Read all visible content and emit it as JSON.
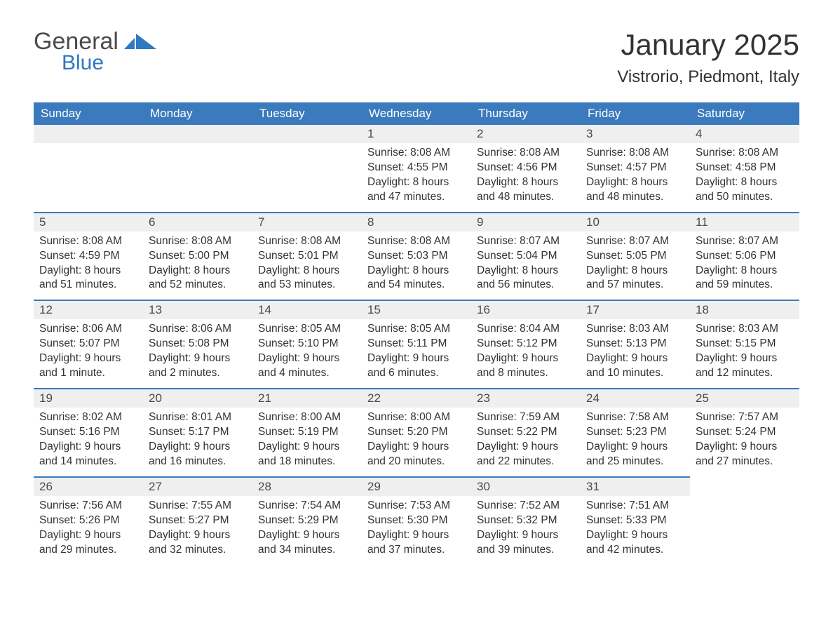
{
  "brand": {
    "part1": "General",
    "part2": "Blue",
    "part1_color": "#4b4b4b",
    "part2_color": "#2f78c2"
  },
  "title": "January 2025",
  "location": "Vistrorio, Piedmont, Italy",
  "colors": {
    "header_bg": "#3a7abd",
    "header_text": "#ffffff",
    "daynum_bg": "#efefef",
    "daynum_text": "#4a4a4a",
    "body_text": "#333333",
    "page_bg": "#ffffff",
    "separator": "#3a7abd"
  },
  "fonts": {
    "title_size": 42,
    "location_size": 24,
    "dayhead_size": 17,
    "body_size": 15.5
  },
  "day_names": [
    "Sunday",
    "Monday",
    "Tuesday",
    "Wednesday",
    "Thursday",
    "Friday",
    "Saturday"
  ],
  "weeks": [
    [
      null,
      null,
      null,
      {
        "n": "1",
        "sunrise": "Sunrise: 8:08 AM",
        "sunset": "Sunset: 4:55 PM",
        "d1": "Daylight: 8 hours",
        "d2": "and 47 minutes."
      },
      {
        "n": "2",
        "sunrise": "Sunrise: 8:08 AM",
        "sunset": "Sunset: 4:56 PM",
        "d1": "Daylight: 8 hours",
        "d2": "and 48 minutes."
      },
      {
        "n": "3",
        "sunrise": "Sunrise: 8:08 AM",
        "sunset": "Sunset: 4:57 PM",
        "d1": "Daylight: 8 hours",
        "d2": "and 48 minutes."
      },
      {
        "n": "4",
        "sunrise": "Sunrise: 8:08 AM",
        "sunset": "Sunset: 4:58 PM",
        "d1": "Daylight: 8 hours",
        "d2": "and 50 minutes."
      }
    ],
    [
      {
        "n": "5",
        "sunrise": "Sunrise: 8:08 AM",
        "sunset": "Sunset: 4:59 PM",
        "d1": "Daylight: 8 hours",
        "d2": "and 51 minutes."
      },
      {
        "n": "6",
        "sunrise": "Sunrise: 8:08 AM",
        "sunset": "Sunset: 5:00 PM",
        "d1": "Daylight: 8 hours",
        "d2": "and 52 minutes."
      },
      {
        "n": "7",
        "sunrise": "Sunrise: 8:08 AM",
        "sunset": "Sunset: 5:01 PM",
        "d1": "Daylight: 8 hours",
        "d2": "and 53 minutes."
      },
      {
        "n": "8",
        "sunrise": "Sunrise: 8:08 AM",
        "sunset": "Sunset: 5:03 PM",
        "d1": "Daylight: 8 hours",
        "d2": "and 54 minutes."
      },
      {
        "n": "9",
        "sunrise": "Sunrise: 8:07 AM",
        "sunset": "Sunset: 5:04 PM",
        "d1": "Daylight: 8 hours",
        "d2": "and 56 minutes."
      },
      {
        "n": "10",
        "sunrise": "Sunrise: 8:07 AM",
        "sunset": "Sunset: 5:05 PM",
        "d1": "Daylight: 8 hours",
        "d2": "and 57 minutes."
      },
      {
        "n": "11",
        "sunrise": "Sunrise: 8:07 AM",
        "sunset": "Sunset: 5:06 PM",
        "d1": "Daylight: 8 hours",
        "d2": "and 59 minutes."
      }
    ],
    [
      {
        "n": "12",
        "sunrise": "Sunrise: 8:06 AM",
        "sunset": "Sunset: 5:07 PM",
        "d1": "Daylight: 9 hours",
        "d2": "and 1 minute."
      },
      {
        "n": "13",
        "sunrise": "Sunrise: 8:06 AM",
        "sunset": "Sunset: 5:08 PM",
        "d1": "Daylight: 9 hours",
        "d2": "and 2 minutes."
      },
      {
        "n": "14",
        "sunrise": "Sunrise: 8:05 AM",
        "sunset": "Sunset: 5:10 PM",
        "d1": "Daylight: 9 hours",
        "d2": "and 4 minutes."
      },
      {
        "n": "15",
        "sunrise": "Sunrise: 8:05 AM",
        "sunset": "Sunset: 5:11 PM",
        "d1": "Daylight: 9 hours",
        "d2": "and 6 minutes."
      },
      {
        "n": "16",
        "sunrise": "Sunrise: 8:04 AM",
        "sunset": "Sunset: 5:12 PM",
        "d1": "Daylight: 9 hours",
        "d2": "and 8 minutes."
      },
      {
        "n": "17",
        "sunrise": "Sunrise: 8:03 AM",
        "sunset": "Sunset: 5:13 PM",
        "d1": "Daylight: 9 hours",
        "d2": "and 10 minutes."
      },
      {
        "n": "18",
        "sunrise": "Sunrise: 8:03 AM",
        "sunset": "Sunset: 5:15 PM",
        "d1": "Daylight: 9 hours",
        "d2": "and 12 minutes."
      }
    ],
    [
      {
        "n": "19",
        "sunrise": "Sunrise: 8:02 AM",
        "sunset": "Sunset: 5:16 PM",
        "d1": "Daylight: 9 hours",
        "d2": "and 14 minutes."
      },
      {
        "n": "20",
        "sunrise": "Sunrise: 8:01 AM",
        "sunset": "Sunset: 5:17 PM",
        "d1": "Daylight: 9 hours",
        "d2": "and 16 minutes."
      },
      {
        "n": "21",
        "sunrise": "Sunrise: 8:00 AM",
        "sunset": "Sunset: 5:19 PM",
        "d1": "Daylight: 9 hours",
        "d2": "and 18 minutes."
      },
      {
        "n": "22",
        "sunrise": "Sunrise: 8:00 AM",
        "sunset": "Sunset: 5:20 PM",
        "d1": "Daylight: 9 hours",
        "d2": "and 20 minutes."
      },
      {
        "n": "23",
        "sunrise": "Sunrise: 7:59 AM",
        "sunset": "Sunset: 5:22 PM",
        "d1": "Daylight: 9 hours",
        "d2": "and 22 minutes."
      },
      {
        "n": "24",
        "sunrise": "Sunrise: 7:58 AM",
        "sunset": "Sunset: 5:23 PM",
        "d1": "Daylight: 9 hours",
        "d2": "and 25 minutes."
      },
      {
        "n": "25",
        "sunrise": "Sunrise: 7:57 AM",
        "sunset": "Sunset: 5:24 PM",
        "d1": "Daylight: 9 hours",
        "d2": "and 27 minutes."
      }
    ],
    [
      {
        "n": "26",
        "sunrise": "Sunrise: 7:56 AM",
        "sunset": "Sunset: 5:26 PM",
        "d1": "Daylight: 9 hours",
        "d2": "and 29 minutes."
      },
      {
        "n": "27",
        "sunrise": "Sunrise: 7:55 AM",
        "sunset": "Sunset: 5:27 PM",
        "d1": "Daylight: 9 hours",
        "d2": "and 32 minutes."
      },
      {
        "n": "28",
        "sunrise": "Sunrise: 7:54 AM",
        "sunset": "Sunset: 5:29 PM",
        "d1": "Daylight: 9 hours",
        "d2": "and 34 minutes."
      },
      {
        "n": "29",
        "sunrise": "Sunrise: 7:53 AM",
        "sunset": "Sunset: 5:30 PM",
        "d1": "Daylight: 9 hours",
        "d2": "and 37 minutes."
      },
      {
        "n": "30",
        "sunrise": "Sunrise: 7:52 AM",
        "sunset": "Sunset: 5:32 PM",
        "d1": "Daylight: 9 hours",
        "d2": "and 39 minutes."
      },
      {
        "n": "31",
        "sunrise": "Sunrise: 7:51 AM",
        "sunset": "Sunset: 5:33 PM",
        "d1": "Daylight: 9 hours",
        "d2": "and 42 minutes."
      },
      null
    ]
  ]
}
